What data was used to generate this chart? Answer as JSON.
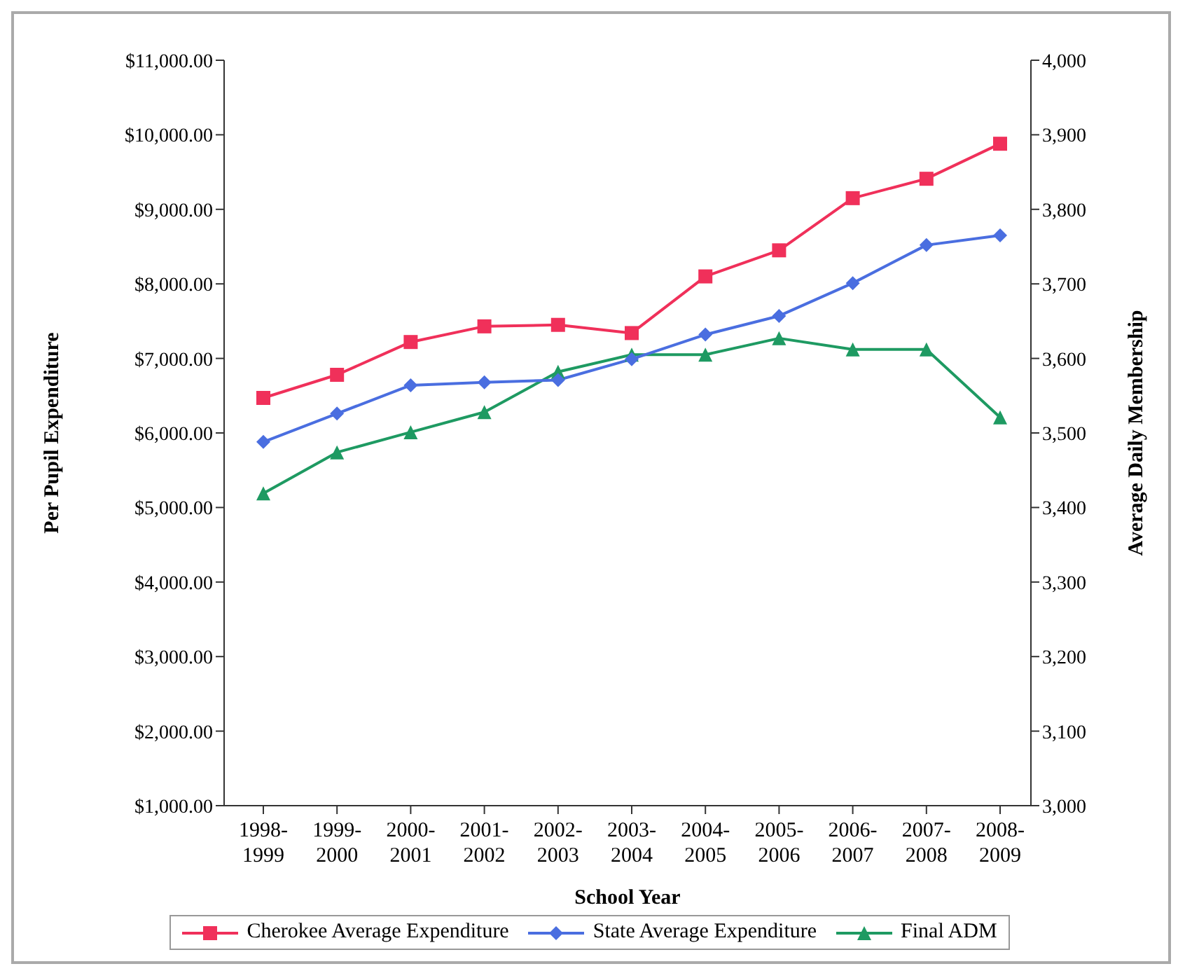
{
  "chart_data": {
    "type": "line",
    "xlabel": "School Year",
    "ylabel": "Per Pupil Expenditure",
    "y2label": "Average Daily Membership",
    "categories": [
      "1998-1999",
      "1999-2000",
      "2000-2001",
      "2001-2002",
      "2002-2003",
      "2003-2004",
      "2004-2005",
      "2005-2006",
      "2006-2007",
      "2007-2008",
      "2008-2009"
    ],
    "series": [
      {
        "name": "Cherokee Average Expenditure",
        "color": "#f0305a",
        "marker": "square",
        "values": [
          6470,
          6780,
          7220,
          7430,
          7450,
          7340,
          8100,
          8450,
          9150,
          9410,
          9880
        ]
      },
      {
        "name": "State Average Expenditure",
        "color": "#4a6ee0",
        "marker": "diamond",
        "values": [
          5880,
          6260,
          6640,
          6680,
          6710,
          6990,
          7320,
          7570,
          8010,
          8520,
          8650
        ]
      },
      {
        "name": "Final ADM",
        "color": "#1e9a62",
        "marker": "triangle",
        "axis": "y2",
        "values": [
          3419,
          3474,
          3501,
          3528,
          3582,
          3605,
          3605,
          3627,
          3612,
          3612,
          3521
        ]
      }
    ],
    "ylim": [
      1000,
      11000
    ],
    "yticks": [
      {
        "value": 1000,
        "label": "$1,000.00"
      },
      {
        "value": 2000,
        "label": "$2,000.00"
      },
      {
        "value": 3000,
        "label": "$3,000.00"
      },
      {
        "value": 4000,
        "label": "$4,000.00"
      },
      {
        "value": 5000,
        "label": "$5,000.00"
      },
      {
        "value": 6000,
        "label": "$6,000.00"
      },
      {
        "value": 7000,
        "label": "$7,000.00"
      },
      {
        "value": 8000,
        "label": "$8,000.00"
      },
      {
        "value": 9000,
        "label": "$9,000.00"
      },
      {
        "value": 10000,
        "label": "$10,000.00"
      },
      {
        "value": 11000,
        "label": "$11,000.00"
      }
    ],
    "y2lim": [
      3000,
      4000
    ],
    "y2ticks": [
      {
        "value": 3000,
        "label": "3,000"
      },
      {
        "value": 3100,
        "label": "3,100"
      },
      {
        "value": 3200,
        "label": "3,200"
      },
      {
        "value": 3300,
        "label": "3,300"
      },
      {
        "value": 3400,
        "label": "3,400"
      },
      {
        "value": 3500,
        "label": "3,500"
      },
      {
        "value": 3600,
        "label": "3,600"
      },
      {
        "value": 3700,
        "label": "3,700"
      },
      {
        "value": 3800,
        "label": "3,800"
      },
      {
        "value": 3900,
        "label": "3,900"
      },
      {
        "value": 4000,
        "label": "4,000"
      }
    ],
    "grid": false,
    "legend": "bottom",
    "line_style": "solid"
  }
}
